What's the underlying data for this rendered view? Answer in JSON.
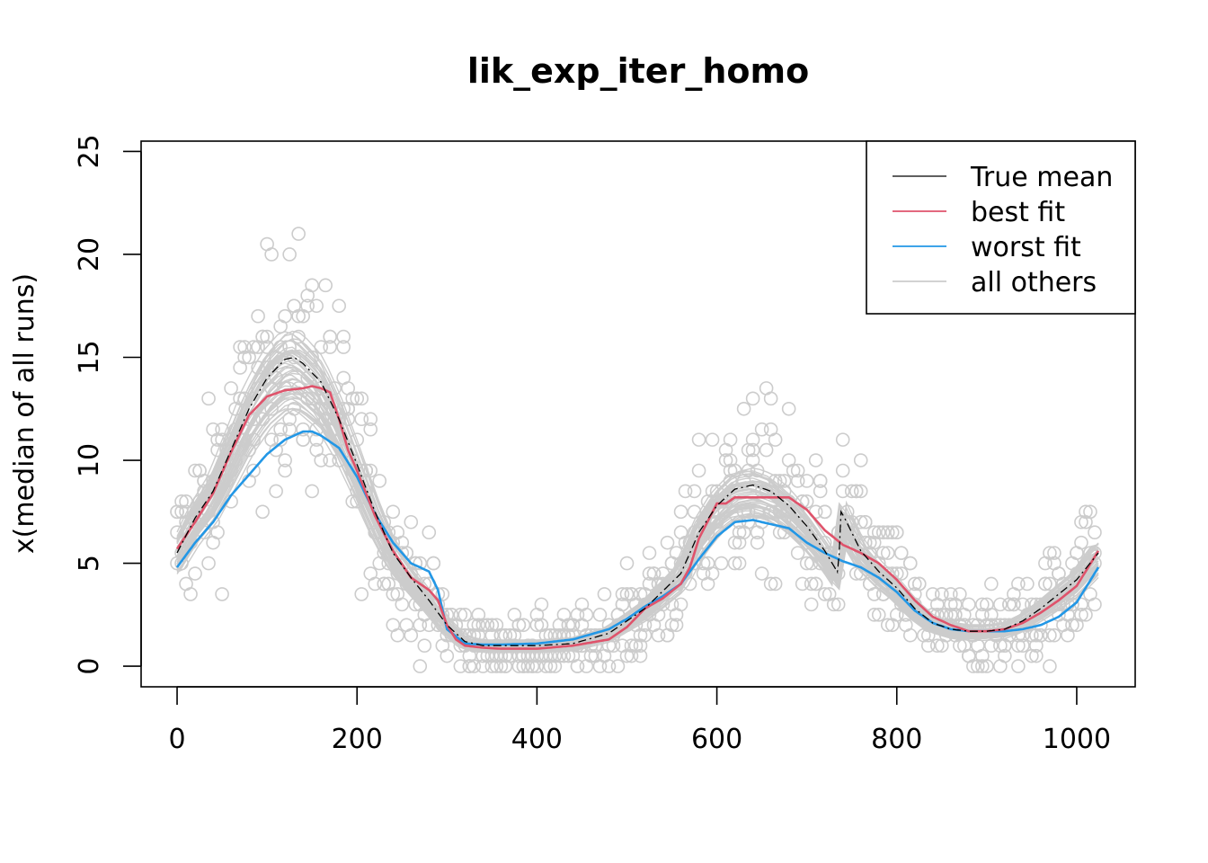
{
  "chart_data": {
    "type": "scatter",
    "title": "lik_exp_iter_homo",
    "xlabel": "",
    "ylabel": "x(median of all runs)",
    "xlim": [
      -40,
      1065
    ],
    "ylim": [
      -1,
      25.5
    ],
    "xticks": [
      0,
      200,
      400,
      600,
      800,
      1000
    ],
    "yticks": [
      0,
      5,
      10,
      15,
      20,
      25
    ],
    "legend_position": "top-right",
    "legend": [
      {
        "label": "True mean",
        "color": "#000000"
      },
      {
        "label": "best fit",
        "color": "#DF536B"
      },
      {
        "label": "worst fit",
        "color": "#2297E6"
      },
      {
        "label": "all others",
        "color": "#CCCCCC"
      }
    ],
    "series": [
      {
        "name": "True mean",
        "style": "dashdot",
        "x": [
          0,
          20,
          40,
          60,
          80,
          100,
          120,
          130,
          140,
          160,
          180,
          200,
          220,
          240,
          260,
          280,
          300,
          320,
          340,
          360,
          400,
          440,
          480,
          520,
          560,
          580,
          600,
          620,
          640,
          660,
          680,
          700,
          720,
          735,
          738,
          742,
          760,
          780,
          800,
          820,
          840,
          860,
          880,
          900,
          920,
          940,
          960,
          980,
          1000,
          1024
        ],
        "y": [
          5.5,
          7.2,
          8.5,
          10.5,
          12.5,
          14.0,
          14.9,
          15.0,
          14.7,
          13.8,
          12.0,
          9.8,
          7.5,
          5.5,
          4.3,
          3.2,
          2.0,
          1.2,
          1.0,
          1.0,
          1.0,
          1.1,
          1.6,
          2.8,
          4.5,
          6.5,
          7.8,
          8.6,
          8.8,
          8.5,
          7.8,
          6.8,
          5.6,
          4.5,
          7.5,
          7.2,
          5.6,
          4.6,
          3.8,
          2.8,
          2.1,
          1.8,
          1.7,
          1.7,
          1.8,
          2.2,
          2.8,
          3.5,
          4.2,
          5.5
        ]
      },
      {
        "name": "best fit",
        "x": [
          0,
          20,
          40,
          60,
          80,
          100,
          120,
          140,
          150,
          160,
          170,
          180,
          190,
          200,
          220,
          240,
          260,
          280,
          290,
          300,
          310,
          320,
          340,
          360,
          400,
          440,
          480,
          500,
          520,
          540,
          560,
          570,
          580,
          600,
          610,
          620,
          640,
          660,
          680,
          700,
          720,
          740,
          760,
          780,
          800,
          820,
          840,
          860,
          880,
          900,
          920,
          940,
          960,
          980,
          1000,
          1024
        ],
        "y": [
          5.7,
          7.0,
          8.4,
          10.4,
          12.2,
          13.1,
          13.4,
          13.5,
          13.6,
          13.5,
          13.3,
          12.0,
          10.5,
          9.5,
          7.3,
          5.6,
          4.3,
          3.7,
          3.2,
          2.0,
          1.3,
          1.0,
          0.9,
          0.85,
          0.85,
          1.0,
          1.3,
          1.9,
          2.8,
          3.3,
          4.0,
          4.8,
          6.2,
          7.9,
          7.9,
          8.2,
          8.2,
          8.2,
          8.2,
          7.6,
          6.6,
          5.9,
          5.5,
          5.0,
          4.2,
          3.2,
          2.4,
          2.0,
          1.7,
          1.7,
          1.8,
          2.1,
          2.6,
          3.2,
          3.9,
          5.6
        ]
      },
      {
        "name": "worst fit",
        "x": [
          0,
          20,
          40,
          60,
          80,
          100,
          120,
          140,
          150,
          160,
          180,
          200,
          220,
          240,
          260,
          280,
          290,
          300,
          320,
          340,
          360,
          400,
          440,
          480,
          500,
          520,
          540,
          560,
          580,
          600,
          620,
          640,
          660,
          680,
          700,
          720,
          740,
          760,
          780,
          800,
          820,
          840,
          860,
          880,
          900,
          920,
          940,
          960,
          980,
          1000,
          1024
        ],
        "y": [
          4.8,
          6.0,
          7.0,
          8.3,
          9.3,
          10.3,
          11.0,
          11.4,
          11.4,
          11.2,
          10.6,
          9.2,
          7.4,
          6.0,
          5.0,
          4.6,
          3.7,
          1.8,
          1.1,
          1.05,
          1.05,
          1.1,
          1.3,
          1.8,
          2.3,
          2.9,
          3.4,
          4.0,
          5.2,
          6.3,
          7.0,
          7.1,
          6.9,
          6.7,
          6.0,
          5.5,
          5.1,
          4.8,
          4.3,
          3.6,
          2.7,
          2.1,
          1.8,
          1.7,
          1.7,
          1.7,
          1.8,
          2.0,
          2.4,
          3.1,
          4.8
        ]
      }
    ]
  }
}
